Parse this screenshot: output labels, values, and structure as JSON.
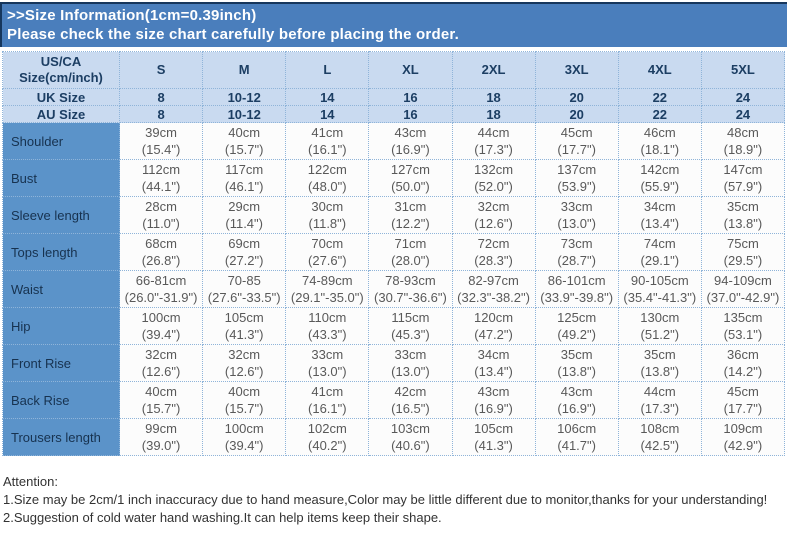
{
  "banner": {
    "line1": ">>Size Information(1cm=0.39inch)",
    "line2": "Please check the size chart carefully before placing the order."
  },
  "table": {
    "corner": {
      "line1": "US/CA",
      "line2": "Size(cm/inch)"
    },
    "columns": [
      "S",
      "M",
      "L",
      "XL",
      "2XL",
      "3XL",
      "4XL",
      "5XL"
    ],
    "region_rows": [
      {
        "label": "UK Size",
        "values": [
          "8",
          "10-12",
          "14",
          "16",
          "18",
          "20",
          "22",
          "24"
        ]
      },
      {
        "label": "AU Size",
        "values": [
          "8",
          "10-12",
          "14",
          "16",
          "18",
          "20",
          "22",
          "24"
        ]
      }
    ],
    "measurement_rows": [
      {
        "label": "Shoulder",
        "cm": [
          "39cm",
          "40cm",
          "41cm",
          "43cm",
          "44cm",
          "45cm",
          "46cm",
          "48cm"
        ],
        "inch": [
          "(15.4\")",
          "(15.7\")",
          "(16.1\")",
          "(16.9\")",
          "(17.3\")",
          "(17.7\")",
          "(18.1\")",
          "(18.9\")"
        ]
      },
      {
        "label": "Bust",
        "cm": [
          "112cm",
          "117cm",
          "122cm",
          "127cm",
          "132cm",
          "137cm",
          "142cm",
          "147cm"
        ],
        "inch": [
          "(44.1\")",
          "(46.1\")",
          "(48.0\")",
          "(50.0\")",
          "(52.0\")",
          "(53.9\")",
          "(55.9\")",
          "(57.9\")"
        ]
      },
      {
        "label": "Sleeve length",
        "cm": [
          "28cm",
          "29cm",
          "30cm",
          "31cm",
          "32cm",
          "33cm",
          "34cm",
          "35cm"
        ],
        "inch": [
          "(11.0\")",
          "(11.4\")",
          "(11.8\")",
          "(12.2\")",
          "(12.6\")",
          "(13.0\")",
          "(13.4\")",
          "(13.8\")"
        ]
      },
      {
        "label": "Tops length",
        "cm": [
          "68cm",
          "69cm",
          "70cm",
          "71cm",
          "72cm",
          "73cm",
          "74cm",
          "75cm"
        ],
        "inch": [
          "(26.8\")",
          "(27.2\")",
          "(27.6\")",
          "(28.0\")",
          "(28.3\")",
          "(28.7\")",
          "(29.1\")",
          "(29.5\")"
        ]
      },
      {
        "label": "Waist",
        "cm": [
          "66-81cm",
          "70-85",
          "74-89cm",
          "78-93cm",
          "82-97cm",
          "86-101cm",
          "90-105cm",
          "94-109cm"
        ],
        "inch": [
          "(26.0\"-31.9\")",
          "(27.6\"-33.5\")",
          "(29.1\"-35.0\")",
          "(30.7\"-36.6\")",
          "(32.3\"-38.2\")",
          "(33.9\"-39.8\")",
          "(35.4\"-41.3\")",
          "(37.0\"-42.9\")"
        ]
      },
      {
        "label": "Hip",
        "cm": [
          "100cm",
          "105cm",
          "110cm",
          "115cm",
          "120cm",
          "125cm",
          "130cm",
          "135cm"
        ],
        "inch": [
          "(39.4\")",
          "(41.3\")",
          "(43.3\")",
          "(45.3\")",
          "(47.2\")",
          "(49.2\")",
          "(51.2\")",
          "(53.1\")"
        ]
      },
      {
        "label": "Front Rise",
        "cm": [
          "32cm",
          "32cm",
          "33cm",
          "33cm",
          "34cm",
          "35cm",
          "35cm",
          "36cm"
        ],
        "inch": [
          "(12.6\")",
          "(12.6\")",
          "(13.0\")",
          "(13.0\")",
          "(13.4\")",
          "(13.8\")",
          "(13.8\")",
          "(14.2\")"
        ]
      },
      {
        "label": "Back Rise",
        "cm": [
          "40cm",
          "40cm",
          "41cm",
          "42cm",
          "43cm",
          "43cm",
          "44cm",
          "45cm"
        ],
        "inch": [
          "(15.7\")",
          "(15.7\")",
          "(16.1\")",
          "(16.5\")",
          "(16.9\")",
          "(16.9\")",
          "(17.3\")",
          "(17.7\")"
        ]
      },
      {
        "label": "Trousers length",
        "cm": [
          "99cm",
          "100cm",
          "102cm",
          "103cm",
          "105cm",
          "106cm",
          "108cm",
          "109cm"
        ],
        "inch": [
          "(39.0\")",
          "(39.4\")",
          "(40.2\")",
          "(40.6\")",
          "(41.3\")",
          "(41.7\")",
          "(42.5\")",
          "(42.9\")"
        ]
      }
    ]
  },
  "attention": {
    "title": "Attention:",
    "lines": [
      "1.Size may be 2cm/1 inch inaccuracy due to hand measure,Color may be little different due to monitor,thanks for your understanding!",
      "2.Suggestion of cold water hand washing.It can help items keep their shape."
    ]
  },
  "colors": {
    "banner_bg": "#4a7ebc",
    "banner_border": "#16365c",
    "banner_text": "#ffffff",
    "header_bg": "#c9daf0",
    "label_column_bg": "#5b93c9",
    "header_text": "#1c3e63",
    "data_text": "#595959",
    "grid": "#8fb4d9"
  }
}
